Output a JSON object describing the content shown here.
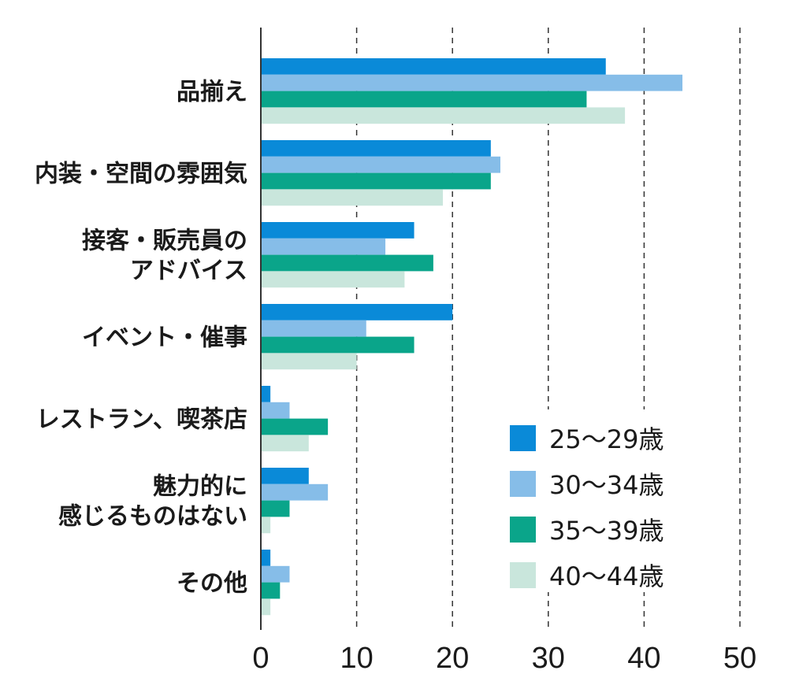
{
  "chart_data": {
    "type": "bar",
    "orientation": "horizontal",
    "categories": [
      [
        "品揃え"
      ],
      [
        "内装・空間の雰囲気"
      ],
      [
        "接客・販売員の",
        "アドバイス"
      ],
      [
        "イベント・催事"
      ],
      [
        "レストラン、喫茶店"
      ],
      [
        "魅力的に",
        "感じるものはない"
      ],
      [
        "その他"
      ]
    ],
    "series": [
      {
        "name": "25〜29歳",
        "color": "#0a8ad8",
        "values": [
          36,
          24,
          16,
          20,
          1,
          5,
          1
        ]
      },
      {
        "name": "30〜34歳",
        "color": "#86bde8",
        "values": [
          44,
          25,
          13,
          11,
          3,
          7,
          3
        ]
      },
      {
        "name": "35〜39歳",
        "color": "#0aa58a",
        "values": [
          34,
          24,
          18,
          16,
          7,
          3,
          2
        ]
      },
      {
        "name": "40〜44歳",
        "color": "#c9e6dc",
        "values": [
          38,
          19,
          15,
          10,
          5,
          1,
          1
        ]
      }
    ],
    "xticks": [
      "0",
      "10",
      "20",
      "30",
      "40",
      "50"
    ],
    "xlim": [
      0,
      50
    ],
    "grid": "vertical dashed",
    "legend_position": "bottom-right",
    "title": "",
    "xlabel": "",
    "ylabel": ""
  }
}
